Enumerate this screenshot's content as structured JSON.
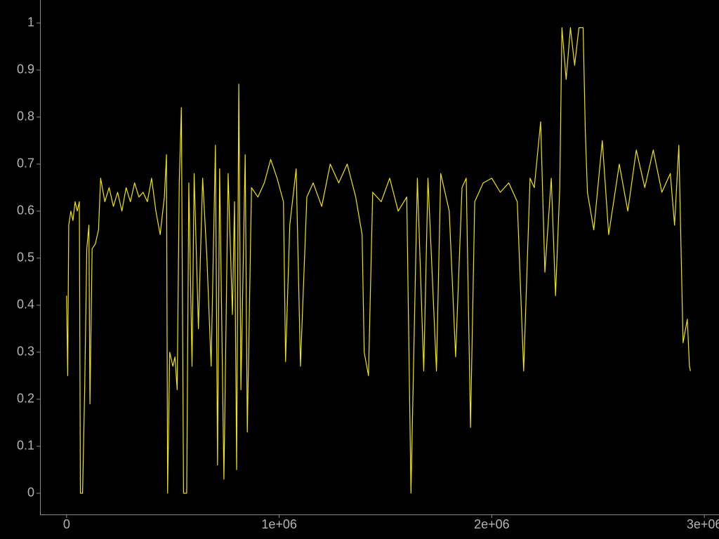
{
  "chart_data": {
    "type": "line",
    "x": [
      0,
      5000,
      10000,
      20000,
      30000,
      40000,
      50000,
      60000,
      65000,
      75000,
      85000,
      95000,
      105000,
      110000,
      120000,
      135000,
      150000,
      160000,
      180000,
      200000,
      220000,
      240000,
      260000,
      280000,
      300000,
      320000,
      340000,
      360000,
      380000,
      400000,
      420000,
      440000,
      460000,
      470000,
      475000,
      485000,
      500000,
      510000,
      520000,
      530000,
      540000,
      550000,
      565000,
      575000,
      590000,
      600000,
      620000,
      640000,
      660000,
      680000,
      700000,
      710000,
      720000,
      740000,
      760000,
      780000,
      790000,
      800000,
      810000,
      820000,
      840000,
      850000,
      870000,
      900000,
      930000,
      960000,
      990000,
      1020000,
      1030000,
      1050000,
      1080000,
      1100000,
      1130000,
      1160000,
      1200000,
      1240000,
      1280000,
      1320000,
      1360000,
      1390000,
      1400000,
      1420000,
      1440000,
      1480000,
      1520000,
      1560000,
      1600000,
      1620000,
      1650000,
      1680000,
      1700000,
      1740000,
      1760000,
      1800000,
      1830000,
      1860000,
      1880000,
      1900000,
      1920000,
      1960000,
      2000000,
      2040000,
      2080000,
      2120000,
      2150000,
      2180000,
      2200000,
      2230000,
      2250000,
      2280000,
      2300000,
      2320000,
      2330000,
      2350000,
      2370000,
      2390000,
      2410000,
      2430000,
      2440000,
      2450000,
      2480000,
      2520000,
      2550000,
      2600000,
      2640000,
      2680000,
      2720000,
      2760000,
      2800000,
      2840000,
      2860000,
      2880000,
      2900000,
      2920000,
      2930000,
      2935000
    ],
    "series": [
      {
        "color": "#f2e600",
        "values": [
          0.42,
          0.25,
          0.57,
          0.6,
          0.58,
          0.62,
          0.6,
          0.62,
          0.0,
          0.0,
          0.22,
          0.52,
          0.57,
          0.19,
          0.52,
          0.53,
          0.56,
          0.67,
          0.62,
          0.65,
          0.61,
          0.64,
          0.6,
          0.65,
          0.62,
          0.66,
          0.63,
          0.64,
          0.62,
          0.67,
          0.6,
          0.55,
          0.63,
          0.72,
          0.0,
          0.3,
          0.27,
          0.29,
          0.22,
          0.66,
          0.82,
          0.0,
          0.0,
          0.66,
          0.27,
          0.68,
          0.35,
          0.67,
          0.5,
          0.27,
          0.74,
          0.06,
          0.69,
          0.03,
          0.68,
          0.38,
          0.62,
          0.05,
          0.87,
          0.22,
          0.72,
          0.13,
          0.65,
          0.63,
          0.66,
          0.71,
          0.67,
          0.62,
          0.28,
          0.57,
          0.69,
          0.27,
          0.63,
          0.66,
          0.61,
          0.7,
          0.66,
          0.7,
          0.63,
          0.55,
          0.3,
          0.25,
          0.64,
          0.62,
          0.67,
          0.6,
          0.63,
          0.0,
          0.67,
          0.26,
          0.67,
          0.26,
          0.68,
          0.6,
          0.29,
          0.65,
          0.67,
          0.14,
          0.62,
          0.66,
          0.67,
          0.64,
          0.66,
          0.62,
          0.26,
          0.67,
          0.65,
          0.79,
          0.47,
          0.67,
          0.42,
          0.65,
          0.99,
          0.88,
          0.99,
          0.91,
          0.99,
          0.99,
          0.77,
          0.64,
          0.56,
          0.75,
          0.55,
          0.7,
          0.6,
          0.73,
          0.65,
          0.73,
          0.64,
          0.68,
          0.57,
          0.74,
          0.32,
          0.37,
          0.27,
          0.26
        ]
      }
    ],
    "xlim": [
      -125000,
      3069000
    ],
    "ylim": [
      -0.045,
      1.049
    ],
    "xticks": [
      0,
      {
        "value": 1000000,
        "label": "1e+06"
      },
      {
        "value": 2000000,
        "label": "2e+06"
      },
      {
        "value": 3000000,
        "label": "3e+06"
      }
    ],
    "yticks": [
      0,
      0.1,
      0.2,
      0.3,
      0.4,
      0.5,
      0.6,
      0.7,
      0.8,
      0.9,
      1
    ]
  }
}
